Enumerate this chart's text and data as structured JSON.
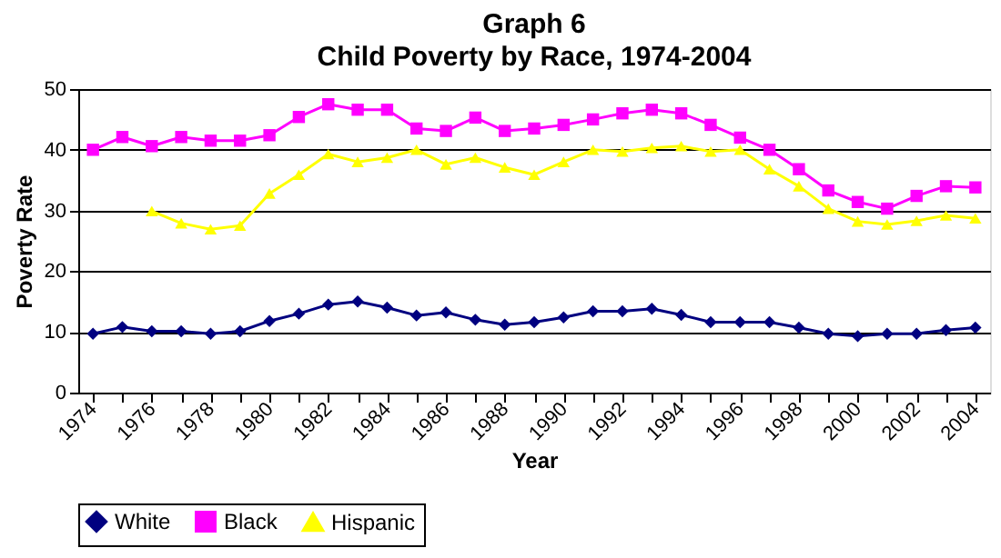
{
  "chart_data": {
    "type": "line",
    "title": "Graph 6",
    "subtitle": "Child Poverty by Race, 1974-2004",
    "xlabel": "Year",
    "ylabel": "Poverty Rate",
    "categories": [
      "1974",
      null,
      "1976",
      null,
      "1978",
      null,
      "1980",
      null,
      "1982",
      null,
      "1984",
      null,
      "1986",
      null,
      "1988",
      null,
      "1990",
      null,
      "1992",
      null,
      "1994",
      null,
      "1996",
      null,
      "1998",
      null,
      "2000",
      null,
      "2002",
      null,
      "2004"
    ],
    "series": [
      {
        "name": "White",
        "color": "#000080",
        "marker": "diamond",
        "values": [
          9.7,
          10.8,
          10.1,
          10.1,
          9.7,
          10.1,
          11.8,
          13.0,
          14.5,
          15.0,
          14.0,
          12.7,
          13.2,
          12.0,
          11.2,
          11.6,
          12.4,
          13.4,
          13.4,
          13.8,
          12.8,
          11.6,
          11.6,
          11.6,
          10.7,
          9.7,
          9.3,
          9.7,
          9.7,
          10.3,
          10.7
        ]
      },
      {
        "name": "Black",
        "color": "#ff00ff",
        "marker": "square",
        "values": [
          40.0,
          42.1,
          40.6,
          42.1,
          41.5,
          41.5,
          42.4,
          45.4,
          47.5,
          46.6,
          46.6,
          43.5,
          43.1,
          45.3,
          43.1,
          43.5,
          44.1,
          45.0,
          46.0,
          46.6,
          46.0,
          44.1,
          42.0,
          40.0,
          36.8,
          33.3,
          31.4,
          30.3,
          32.4,
          34.0,
          33.8
        ]
      },
      {
        "name": "Hispanic",
        "color": "#ffff00",
        "marker": "triangle",
        "values": [
          null,
          null,
          29.9,
          27.9,
          26.9,
          27.5,
          32.8,
          35.9,
          39.3,
          38.0,
          38.7,
          40.0,
          37.6,
          38.7,
          37.1,
          35.9,
          38.0,
          40.0,
          39.7,
          40.3,
          40.6,
          39.7,
          40.0,
          36.8,
          34.0,
          30.3,
          28.2,
          27.7,
          28.3,
          29.2,
          28.7
        ]
      }
    ],
    "ylim": [
      0,
      50
    ],
    "yticks": [
      0,
      10,
      20,
      30,
      40,
      50
    ],
    "grid": "y",
    "legend": "bottom",
    "line_style": "solid"
  }
}
